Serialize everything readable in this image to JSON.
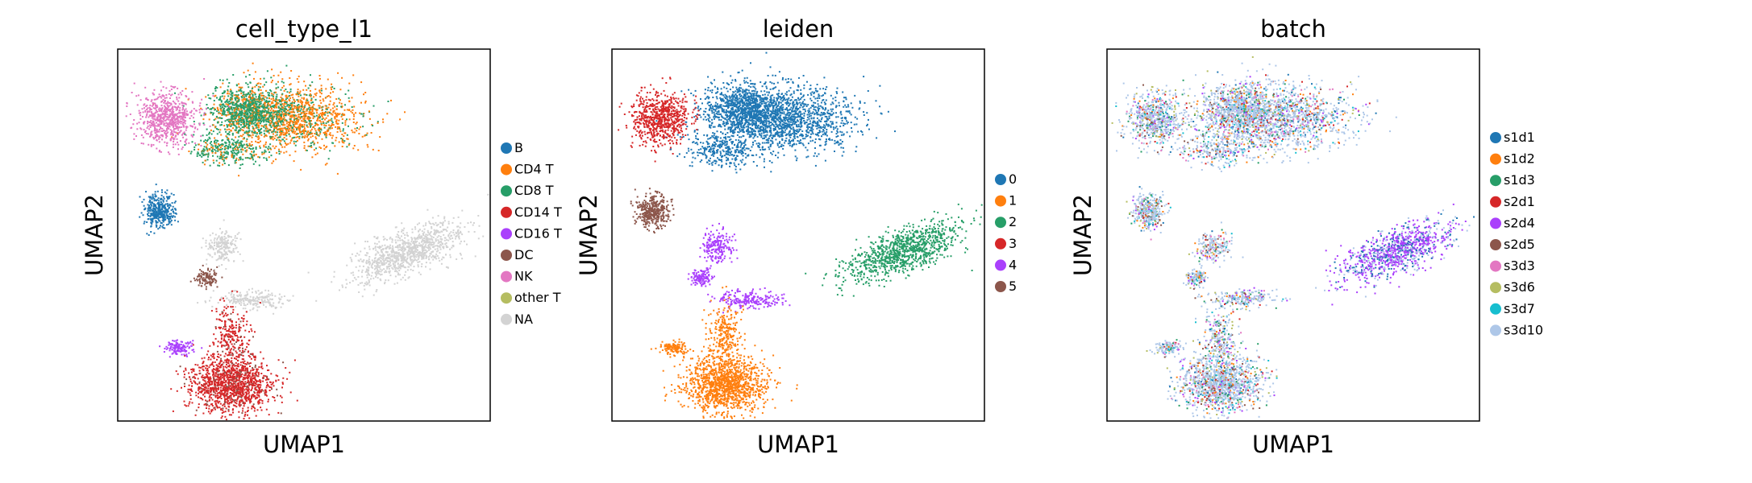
{
  "chart_data": [
    {
      "type": "scatter",
      "title": "cell_type_l1",
      "xlabel": "UMAP1",
      "ylabel": "UMAP2",
      "xticks": "none",
      "yticks": "none",
      "legend_position": "right",
      "legend": [
        {
          "label": "B",
          "color": "#1f77b4"
        },
        {
          "label": "CD4 T",
          "color": "#ff7f0e"
        },
        {
          "label": "CD8 T",
          "color": "#279e68"
        },
        {
          "label": "CD14 T",
          "color": "#d62728"
        },
        {
          "label": "CD16 T",
          "color": "#aa40fc"
        },
        {
          "label": "DC",
          "color": "#8c564b"
        },
        {
          "label": "NK",
          "color": "#e377c2"
        },
        {
          "label": "other T",
          "color": "#b5bd61"
        },
        {
          "label": "NA",
          "color": "#d3d3d3"
        }
      ]
    },
    {
      "type": "scatter",
      "title": "leiden",
      "xlabel": "UMAP1",
      "ylabel": "UMAP2",
      "xticks": "none",
      "yticks": "none",
      "legend_position": "right",
      "legend": [
        {
          "label": "0",
          "color": "#1f77b4"
        },
        {
          "label": "1",
          "color": "#ff7f0e"
        },
        {
          "label": "2",
          "color": "#279e68"
        },
        {
          "label": "3",
          "color": "#d62728"
        },
        {
          "label": "4",
          "color": "#aa40fc"
        },
        {
          "label": "5",
          "color": "#8c564b"
        }
      ]
    },
    {
      "type": "scatter",
      "title": "batch",
      "xlabel": "UMAP1",
      "ylabel": "UMAP2",
      "xticks": "none",
      "yticks": "none",
      "legend_position": "right",
      "legend": [
        {
          "label": "s1d1",
          "color": "#1f77b4"
        },
        {
          "label": "s1d2",
          "color": "#ff7f0e"
        },
        {
          "label": "s1d3",
          "color": "#279e68"
        },
        {
          "label": "s2d1",
          "color": "#d62728"
        },
        {
          "label": "s2d4",
          "color": "#aa40fc"
        },
        {
          "label": "s2d5",
          "color": "#8c564b"
        },
        {
          "label": "s3d3",
          "color": "#e377c2"
        },
        {
          "label": "s3d6",
          "color": "#b5bd61"
        },
        {
          "label": "s3d7",
          "color": "#17becf"
        },
        {
          "label": "s3d10",
          "color": "#aec7e8"
        }
      ]
    }
  ]
}
